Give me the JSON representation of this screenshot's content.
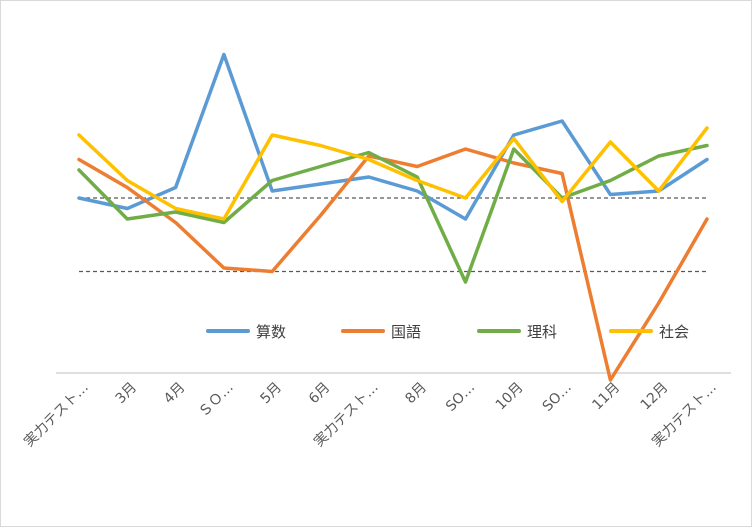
{
  "chart_data": {
    "type": "line",
    "categories": [
      "実力テスト…",
      "3月",
      "4月",
      "ＳＯ…",
      "5月",
      "6月",
      "実力テスト…",
      "8月",
      "SO…",
      "10月",
      "SO…",
      "11月",
      "12月",
      "実力テスト…"
    ],
    "ylim": [
      0,
      100
    ],
    "reference_lines": [
      50,
      29
    ],
    "grid": false,
    "legend_position": "inside-bottom",
    "series": [
      {
        "name": "算数",
        "color": "#5b9bd5",
        "values": [
          50,
          47,
          53,
          91,
          52,
          54,
          56,
          52,
          44,
          68,
          72,
          51,
          52,
          61
        ]
      },
      {
        "name": "国語",
        "color": "#ed7d31",
        "values": [
          61,
          53,
          43,
          30,
          29,
          45,
          62,
          59,
          64,
          60,
          57,
          -2,
          20,
          44
        ]
      },
      {
        "name": "理科",
        "color": "#70ad47",
        "values": [
          58,
          44,
          46,
          43,
          55,
          59,
          63,
          56,
          26,
          64,
          50,
          55,
          62,
          65
        ]
      },
      {
        "name": "社会",
        "color": "#ffc000",
        "values": [
          68,
          55,
          47,
          44,
          68,
          65,
          61,
          55,
          50,
          67,
          49,
          66,
          52,
          70
        ]
      }
    ]
  }
}
